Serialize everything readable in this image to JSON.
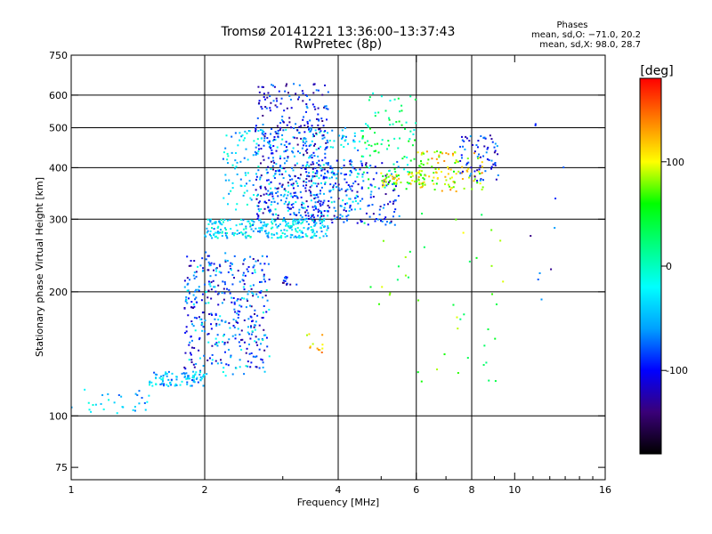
{
  "chart_data": {
    "type": "scatter",
    "title": "Tromsø 20141221 13:36:00–13:37:43",
    "subtitle": "RwPretec (8p)",
    "xlabel": "Frequency [MHz]",
    "ylabel": "Stationary phase Virtual Height [km]",
    "x_scale": "log",
    "y_scale": "log",
    "xlim": [
      1,
      16
    ],
    "ylim": [
      70,
      750
    ],
    "x_ticks": [
      1,
      2,
      4,
      6,
      8,
      10,
      16
    ],
    "x_tick_labels": [
      "1",
      "2",
      "4",
      "6",
      "8",
      "10",
      "16"
    ],
    "y_ticks": [
      75,
      100,
      200,
      300,
      400,
      500,
      600,
      750
    ],
    "y_tick_labels": [
      "75",
      "100",
      "200",
      "300",
      "400",
      "500",
      "600",
      "750"
    ],
    "x_gridlines": [
      2,
      4,
      6,
      8
    ],
    "y_gridlines": [
      100,
      200,
      300,
      400,
      500,
      600
    ],
    "grid": true,
    "stats": {
      "heading": "Phases",
      "line1": "mean, sd,O: −71.0, 20.2",
      "line2": "mean, sd,X:  98.0, 28.7"
    },
    "colorbar": {
      "label": "[deg]",
      "min": -180,
      "max": 180,
      "ticks": [
        100,
        0,
        -100
      ],
      "tick_labels": [
        "100",
        "0",
        "-100"
      ],
      "stops": [
        "#000000",
        "#3a0078",
        "#0000ff",
        "#00a0ff",
        "#00ffff",
        "#00ff80",
        "#00ff00",
        "#ffff00",
        "#ff8000",
        "#ff0000"
      ]
    },
    "clusters": [
      {
        "x": [
          1.0,
          1.5
        ],
        "y": [
          100,
          118
        ],
        "phase": -40,
        "count": 30,
        "spread": 0.07
      },
      {
        "x": [
          1.5,
          2.0
        ],
        "y": [
          118,
          128
        ],
        "phase": -50,
        "count": 90,
        "spread": 0.05
      },
      {
        "x": [
          1.8,
          2.8
        ],
        "y": [
          130,
          250
        ],
        "phase": -95,
        "count": 280,
        "spread": 0.08
      },
      {
        "x": [
          1.8,
          2.8
        ],
        "y": [
          125,
          240
        ],
        "phase": -40,
        "count": 120,
        "spread": 0.08
      },
      {
        "x": [
          2.0,
          3.8
        ],
        "y": [
          270,
          300
        ],
        "phase": -35,
        "count": 260,
        "spread": 0.04
      },
      {
        "x": [
          2.2,
          4.5
        ],
        "y": [
          300,
          500
        ],
        "phase": -40,
        "count": 320,
        "spread": 0.12
      },
      {
        "x": [
          2.6,
          3.8
        ],
        "y": [
          300,
          640
        ],
        "phase": -100,
        "count": 380,
        "spread": 0.1
      },
      {
        "x": [
          3.5,
          5.5
        ],
        "y": [
          290,
          420
        ],
        "phase": -95,
        "count": 180,
        "spread": 0.08
      },
      {
        "x": [
          4.5,
          6.0
        ],
        "y": [
          350,
          620
        ],
        "phase": 20,
        "count": 90,
        "spread": 0.15
      },
      {
        "x": [
          5.0,
          6.3
        ],
        "y": [
          360,
          390
        ],
        "phase": 90,
        "count": 60,
        "spread": 0.05
      },
      {
        "x": [
          6.0,
          8.5
        ],
        "y": [
          350,
          440
        ],
        "phase": 100,
        "count": 110,
        "spread": 0.06
      },
      {
        "x": [
          7.5,
          9.2
        ],
        "y": [
          370,
          480
        ],
        "phase": -95,
        "count": 70,
        "spread": 0.06
      },
      {
        "x": [
          3.0,
          3.25
        ],
        "y": [
          208,
          218
        ],
        "phase": -110,
        "count": 14,
        "spread": 0.02
      },
      {
        "x": [
          3.4,
          3.7
        ],
        "y": [
          142,
          158
        ],
        "phase": 110,
        "count": 12,
        "spread": 0.03
      },
      {
        "x": [
          4.5,
          9.5
        ],
        "y": [
          120,
          320
        ],
        "phase": 60,
        "count": 45,
        "spread": 0.2
      },
      {
        "x": [
          10.0,
          13.5
        ],
        "y": [
          185,
          640
        ],
        "phase": -100,
        "count": 10,
        "spread": 0.1
      }
    ]
  }
}
